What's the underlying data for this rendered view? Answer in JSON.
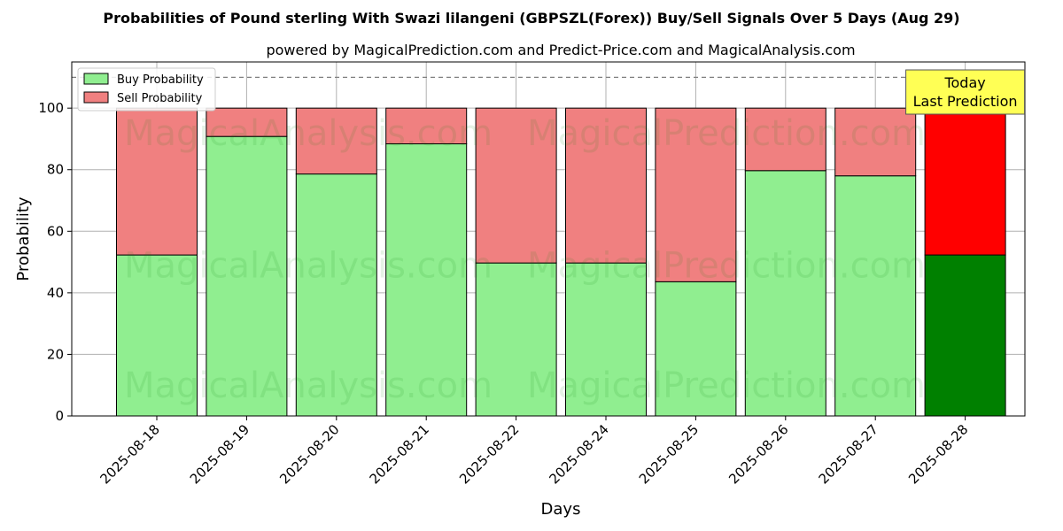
{
  "chart_data": {
    "type": "bar",
    "stacked": true,
    "title": "Probabilities of Pound sterling With Swazi lilangeni (GBPSZL(Forex)) Buy/Sell Signals Over 5 Days (Aug 29)",
    "subtitle": "powered by MagicalPrediction.com and Predict-Price.com and MagicalAnalysis.com",
    "xlabel": "Days",
    "ylabel": "Probability",
    "ylim": [
      0,
      115
    ],
    "yticks": [
      0,
      20,
      40,
      60,
      80,
      100
    ],
    "grid": true,
    "legend_placement": "top-left",
    "reference_line": 110,
    "categories": [
      "2025-08-18",
      "2025-08-19",
      "2025-08-20",
      "2025-08-21",
      "2025-08-22",
      "2025-08-24",
      "2025-08-25",
      "2025-08-26",
      "2025-08-27",
      "2025-08-28"
    ],
    "series": [
      {
        "name": "Buy Probability",
        "color": "#90EE90",
        "highlight_color": "#008000",
        "values": [
          52.3,
          90.8,
          78.6,
          88.4,
          49.7,
          49.7,
          43.6,
          79.7,
          78.0,
          52.3
        ]
      },
      {
        "name": "Sell Probability",
        "color": "#F08080",
        "highlight_color": "#FF0000",
        "values": [
          47.7,
          9.2,
          21.4,
          11.6,
          50.3,
          50.3,
          56.4,
          20.3,
          22.0,
          47.7
        ]
      }
    ],
    "highlight_index": 9,
    "annotation": {
      "lines": [
        "Today",
        "Last Prediction"
      ],
      "bg_color": "#FFFF55"
    },
    "watermarks": [
      "MagicalAnalysis.com",
      "MagicalPrediction.com"
    ]
  }
}
